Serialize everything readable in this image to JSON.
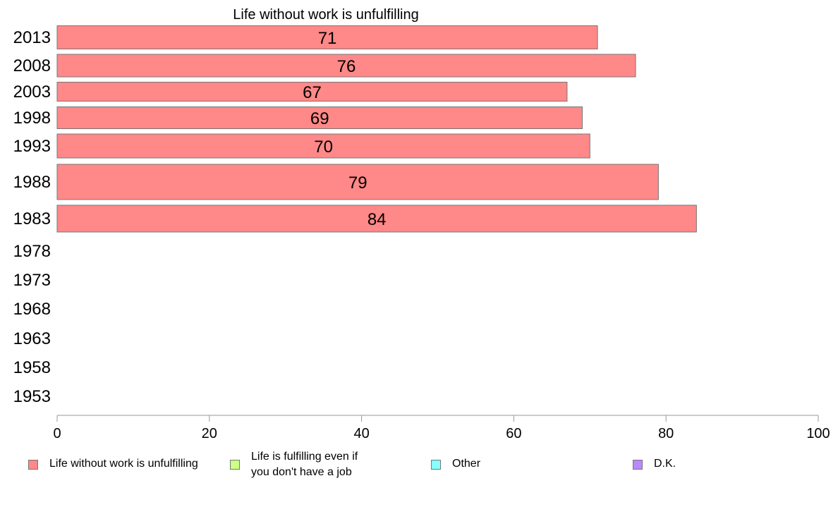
{
  "chart_data": {
    "type": "bar",
    "orientation": "horizontal",
    "title": "Life without work is unfulfilling",
    "xlabel": "",
    "ylabel": "",
    "xlim": [
      0,
      100
    ],
    "x_ticks": [
      "0",
      "20",
      "40",
      "60",
      "80",
      "100"
    ],
    "categories": [
      "2013",
      "2008",
      "2003",
      "1998",
      "1993",
      "1988",
      "1983",
      "1978",
      "1973",
      "1968",
      "1963",
      "1958",
      "1953"
    ],
    "series": [
      {
        "name": "Life without work is unfulfilling",
        "color": "#ff8888",
        "values": [
          71,
          76,
          67,
          69,
          70,
          79,
          84,
          null,
          null,
          null,
          null,
          null,
          null
        ]
      }
    ],
    "data_labels": [
      "71",
      "76",
      "67",
      "69",
      "70",
      "79",
      "84",
      "",
      "",
      "",
      "",
      "",
      ""
    ],
    "grid": false,
    "legend_position": "bottom"
  },
  "legend": [
    {
      "label": "Life without work is unfulfilling",
      "color": "#ff8888"
    },
    {
      "label": "Life is fulfilling even if you don't have a job",
      "color": "#ccff88"
    },
    {
      "label": "Other",
      "color": "#88ffff"
    },
    {
      "label": "D.K.",
      "color": "#bb88ff"
    }
  ]
}
